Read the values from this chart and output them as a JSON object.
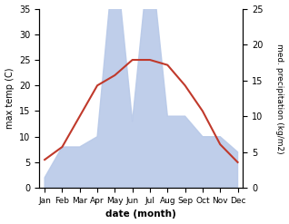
{
  "months": [
    "Jan",
    "Feb",
    "Mar",
    "Apr",
    "May",
    "Jun",
    "Jul",
    "Aug",
    "Sep",
    "Oct",
    "Nov",
    "Dec"
  ],
  "temp": [
    5.5,
    8.0,
    14.0,
    20.0,
    22.0,
    25.0,
    25.0,
    24.0,
    20.0,
    15.0,
    8.5,
    5.0
  ],
  "precip": [
    2.0,
    8.0,
    8.0,
    10.0,
    47.0,
    13.0,
    47.0,
    14.0,
    14.0,
    10.0,
    10.0,
    7.0
  ],
  "temp_ylim": [
    0,
    35
  ],
  "precip_ylim": [
    0,
    25
  ],
  "precip_scale_max": 35,
  "temp_color": "#c0392b",
  "precip_color": "#b8c9e8",
  "xlabel": "date (month)",
  "ylabel_left": "max temp (C)",
  "ylabel_right": "med. precipitation (kg/m2)",
  "bg_color": "#ffffff"
}
